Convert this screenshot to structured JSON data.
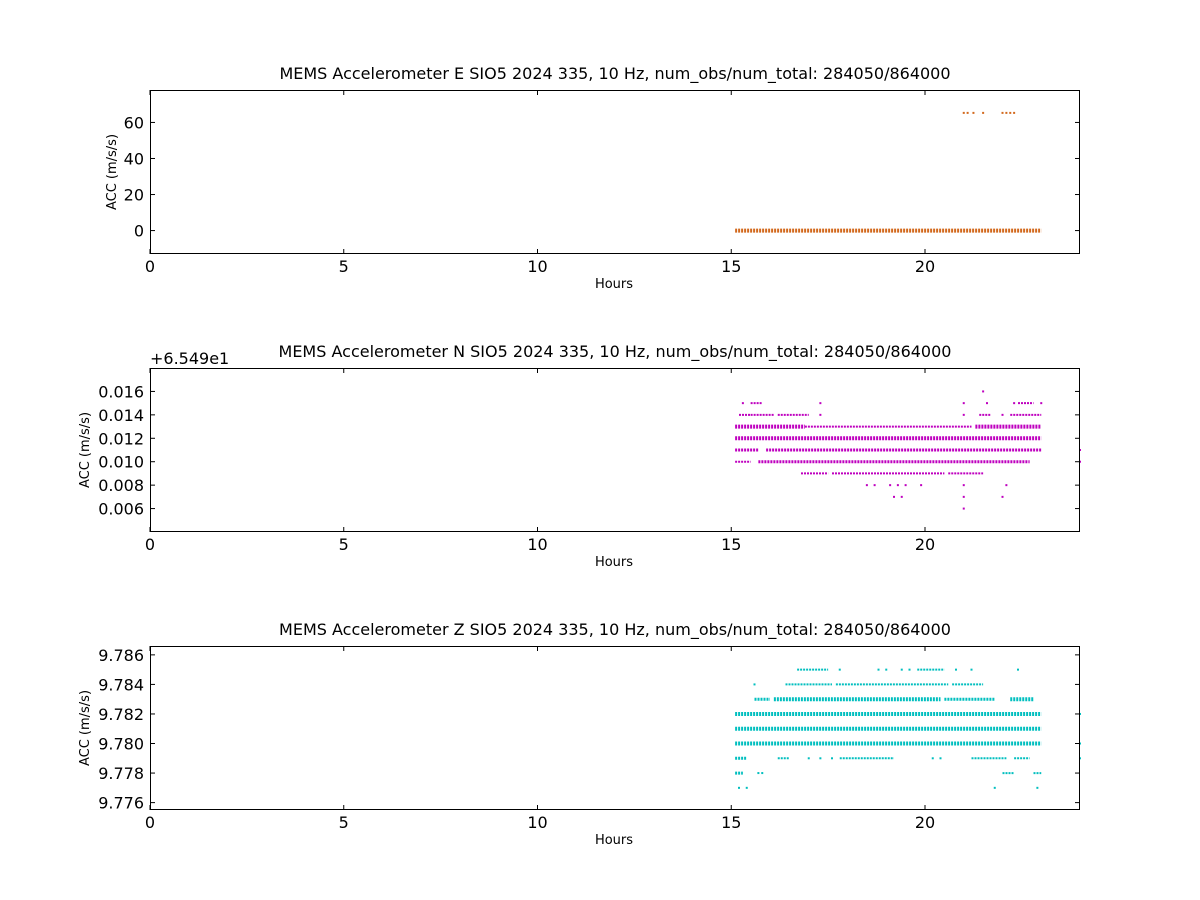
{
  "colors": {
    "E": "#d2691e",
    "N": "#bf00bf",
    "Z": "#00bfbf"
  },
  "chart_data": [
    {
      "type": "scatter",
      "title": "MEMS Accelerometer E SIO5 2024 335, 10 Hz, num_obs/num_total: 284050/864000",
      "xlabel": "Hours",
      "ylabel": "ACC (m/s/s)",
      "offset_label": "",
      "xlim": [
        0,
        24
      ],
      "ylim": [
        -13,
        78
      ],
      "x_ticks": [
        0,
        5,
        10,
        15,
        20
      ],
      "x_tick_labels": [
        "0",
        "5",
        "10",
        "15",
        "20"
      ],
      "y_ticks": [
        0,
        20,
        40,
        60
      ],
      "y_tick_labels": [
        "0",
        "20",
        "40",
        "60"
      ],
      "color": "#d2691e",
      "segments": [
        {
          "y": 0.0,
          "x0": 15.1,
          "x1": 23.0,
          "thickness": 4
        }
      ],
      "points": [
        {
          "x": 21.0,
          "y": 65.3
        },
        {
          "x": 21.1,
          "y": 65.3
        },
        {
          "x": 21.25,
          "y": 65.3
        },
        {
          "x": 21.5,
          "y": 65.3
        },
        {
          "x": 22.0,
          "y": 65.3
        },
        {
          "x": 22.1,
          "y": 65.3
        },
        {
          "x": 22.2,
          "y": 65.3
        },
        {
          "x": 22.3,
          "y": 65.3
        }
      ]
    },
    {
      "type": "scatter",
      "title": "MEMS Accelerometer N SIO5 2024 335, 10 Hz, num_obs/num_total: 284050/864000",
      "xlabel": "Hours",
      "ylabel": "ACC (m/s/s)",
      "offset_label": "+6.549e1",
      "xlim": [
        0,
        24
      ],
      "ylim": [
        0.004,
        0.018
      ],
      "x_ticks": [
        0,
        5,
        10,
        15,
        20
      ],
      "x_tick_labels": [
        "0",
        "5",
        "10",
        "15",
        "20"
      ],
      "y_ticks": [
        0.006,
        0.008,
        0.01,
        0.012,
        0.014,
        0.016
      ],
      "y_tick_labels": [
        "0.006",
        "0.008",
        "0.010",
        "0.012",
        "0.014",
        "0.016"
      ],
      "color": "#bf00bf",
      "segments": [
        {
          "y": 0.012,
          "x0": 15.1,
          "x1": 23.0,
          "thickness": 4
        },
        {
          "y": 0.013,
          "x0": 15.1,
          "x1": 16.9,
          "thickness": 4
        },
        {
          "y": 0.013,
          "x0": 16.9,
          "x1": 21.2,
          "thickness": 2
        },
        {
          "y": 0.013,
          "x0": 21.3,
          "x1": 23.0,
          "thickness": 4
        },
        {
          "y": 0.011,
          "x0": 15.1,
          "x1": 15.7,
          "thickness": 3
        },
        {
          "y": 0.011,
          "x0": 15.9,
          "x1": 23.0,
          "thickness": 3
        },
        {
          "y": 0.01,
          "x0": 15.1,
          "x1": 15.5,
          "thickness": 2
        },
        {
          "y": 0.01,
          "x0": 15.7,
          "x1": 22.7,
          "thickness": 3
        },
        {
          "y": 0.009,
          "x0": 16.8,
          "x1": 17.5,
          "thickness": 2
        },
        {
          "y": 0.009,
          "x0": 17.6,
          "x1": 20.5,
          "thickness": 2
        },
        {
          "y": 0.009,
          "x0": 20.6,
          "x1": 21.5,
          "thickness": 2
        },
        {
          "y": 0.014,
          "x0": 15.2,
          "x1": 15.5,
          "thickness": 2
        },
        {
          "y": 0.014,
          "x0": 15.5,
          "x1": 16.1,
          "thickness": 2
        },
        {
          "y": 0.014,
          "x0": 16.2,
          "x1": 17.0,
          "thickness": 2
        },
        {
          "y": 0.014,
          "x0": 21.4,
          "x1": 21.7,
          "thickness": 2
        },
        {
          "y": 0.014,
          "x0": 22.2,
          "x1": 23.0,
          "thickness": 2
        },
        {
          "y": 0.015,
          "x0": 15.5,
          "x1": 15.8,
          "thickness": 2
        },
        {
          "y": 0.015,
          "x0": 22.4,
          "x1": 22.8,
          "thickness": 2
        }
      ],
      "points": [
        {
          "x": 15.3,
          "y": 0.015
        },
        {
          "x": 17.3,
          "y": 0.015
        },
        {
          "x": 21.0,
          "y": 0.015
        },
        {
          "x": 21.6,
          "y": 0.015
        },
        {
          "x": 22.3,
          "y": 0.015
        },
        {
          "x": 23.0,
          "y": 0.015
        },
        {
          "x": 17.3,
          "y": 0.014
        },
        {
          "x": 21.0,
          "y": 0.014
        },
        {
          "x": 22.0,
          "y": 0.014
        },
        {
          "x": 21.5,
          "y": 0.016
        },
        {
          "x": 18.5,
          "y": 0.008
        },
        {
          "x": 18.7,
          "y": 0.008
        },
        {
          "x": 19.1,
          "y": 0.008
        },
        {
          "x": 19.3,
          "y": 0.008
        },
        {
          "x": 19.5,
          "y": 0.008
        },
        {
          "x": 19.9,
          "y": 0.008
        },
        {
          "x": 21.0,
          "y": 0.008
        },
        {
          "x": 22.1,
          "y": 0.008
        },
        {
          "x": 19.2,
          "y": 0.007
        },
        {
          "x": 19.4,
          "y": 0.007
        },
        {
          "x": 21.0,
          "y": 0.007
        },
        {
          "x": 22.0,
          "y": 0.007
        },
        {
          "x": 21.0,
          "y": 0.006
        },
        {
          "x": 24.0,
          "y": 0.011
        },
        {
          "x": 24.0,
          "y": 0.01
        }
      ]
    },
    {
      "type": "scatter",
      "title": "MEMS Accelerometer Z SIO5 2024 335, 10 Hz, num_obs/num_total: 284050/864000",
      "xlabel": "Hours",
      "ylabel": "ACC (m/s/s)",
      "offset_label": "",
      "xlim": [
        0,
        24
      ],
      "ylim": [
        9.7755,
        9.7866
      ],
      "x_ticks": [
        0,
        5,
        10,
        15,
        20
      ],
      "x_tick_labels": [
        "0",
        "5",
        "10",
        "15",
        "20"
      ],
      "y_ticks": [
        9.776,
        9.778,
        9.78,
        9.782,
        9.784,
        9.786
      ],
      "y_tick_labels": [
        "9.776",
        "9.778",
        "9.780",
        "9.782",
        "9.784",
        "9.786"
      ],
      "color": "#00bfbf",
      "segments": [
        {
          "y": 9.782,
          "x0": 15.1,
          "x1": 23.0,
          "thickness": 4
        },
        {
          "y": 9.781,
          "x0": 15.1,
          "x1": 23.0,
          "thickness": 4
        },
        {
          "y": 9.78,
          "x0": 15.1,
          "x1": 23.0,
          "thickness": 4
        },
        {
          "y": 9.783,
          "x0": 15.6,
          "x1": 16.0,
          "thickness": 3
        },
        {
          "y": 9.783,
          "x0": 16.1,
          "x1": 20.4,
          "thickness": 4
        },
        {
          "y": 9.783,
          "x0": 20.5,
          "x1": 21.8,
          "thickness": 3
        },
        {
          "y": 9.783,
          "x0": 22.2,
          "x1": 22.8,
          "thickness": 4
        },
        {
          "y": 9.779,
          "x0": 15.1,
          "x1": 15.4,
          "thickness": 3
        },
        {
          "y": 9.779,
          "x0": 16.2,
          "x1": 16.5,
          "thickness": 2
        },
        {
          "y": 9.779,
          "x0": 17.8,
          "x1": 19.2,
          "thickness": 2
        },
        {
          "y": 9.779,
          "x0": 21.2,
          "x1": 22.1,
          "thickness": 2
        },
        {
          "y": 9.779,
          "x0": 22.3,
          "x1": 22.7,
          "thickness": 2
        },
        {
          "y": 9.784,
          "x0": 16.4,
          "x1": 17.6,
          "thickness": 2
        },
        {
          "y": 9.784,
          "x0": 17.7,
          "x1": 20.6,
          "thickness": 2
        },
        {
          "y": 9.784,
          "x0": 20.7,
          "x1": 21.5,
          "thickness": 2
        },
        {
          "y": 9.785,
          "x0": 16.7,
          "x1": 17.5,
          "thickness": 2
        },
        {
          "y": 9.785,
          "x0": 19.8,
          "x1": 20.5,
          "thickness": 2
        },
        {
          "y": 9.778,
          "x0": 15.1,
          "x1": 15.3,
          "thickness": 3
        },
        {
          "y": 9.778,
          "x0": 22.0,
          "x1": 22.3,
          "thickness": 2
        },
        {
          "y": 9.778,
          "x0": 22.8,
          "x1": 23.0,
          "thickness": 2
        }
      ],
      "points": [
        {
          "x": 15.6,
          "y": 9.784
        },
        {
          "x": 15.7,
          "y": 9.778
        },
        {
          "x": 15.8,
          "y": 9.778
        },
        {
          "x": 15.2,
          "y": 9.777
        },
        {
          "x": 15.4,
          "y": 9.777
        },
        {
          "x": 21.8,
          "y": 9.777
        },
        {
          "x": 22.9,
          "y": 9.777
        },
        {
          "x": 17.8,
          "y": 9.785
        },
        {
          "x": 18.8,
          "y": 9.785
        },
        {
          "x": 19.0,
          "y": 9.785
        },
        {
          "x": 19.4,
          "y": 9.785
        },
        {
          "x": 19.6,
          "y": 9.785
        },
        {
          "x": 20.8,
          "y": 9.785
        },
        {
          "x": 21.2,
          "y": 9.785
        },
        {
          "x": 22.4,
          "y": 9.785
        },
        {
          "x": 17.0,
          "y": 9.779
        },
        {
          "x": 17.3,
          "y": 9.779
        },
        {
          "x": 17.6,
          "y": 9.779
        },
        {
          "x": 20.2,
          "y": 9.779
        },
        {
          "x": 20.4,
          "y": 9.779
        },
        {
          "x": 24.0,
          "y": 9.782
        },
        {
          "x": 24.0,
          "y": 9.78
        },
        {
          "x": 24.0,
          "y": 9.779
        }
      ]
    }
  ]
}
